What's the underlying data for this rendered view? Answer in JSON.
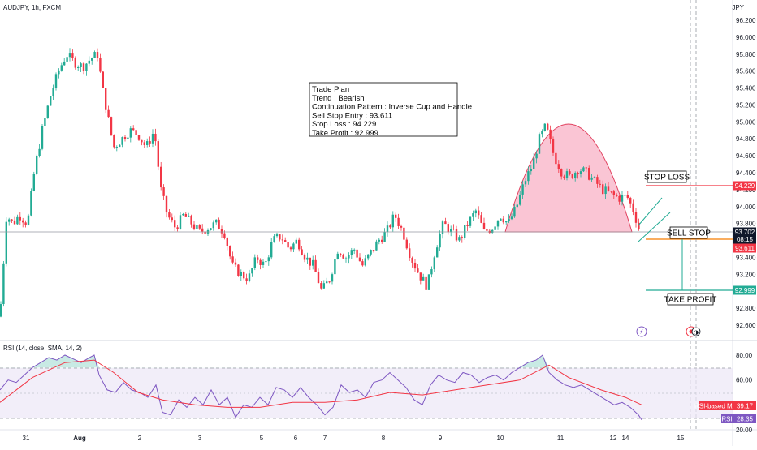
{
  "header": {
    "symbol": "AUDJPY, 1h, FXCM"
  },
  "currency": "JPY",
  "colors": {
    "up": "#22ab94",
    "down": "#f23645",
    "cup_fill": "#f7a6bd",
    "cup_line": "#e1415f",
    "rsi_line": "#7e57c2",
    "rsi_ma": "#f23645",
    "rsi_band": "#ede7f6"
  },
  "price_axis": {
    "ticks": [
      "96.200",
      "96.000",
      "95.800",
      "95.600",
      "95.400",
      "95.200",
      "95.000",
      "94.800",
      "94.600",
      "94.400",
      "94.200",
      "94.000",
      "93.800",
      "93.600",
      "93.400",
      "93.200",
      "93.000",
      "92.800",
      "92.600"
    ]
  },
  "price_tags": [
    {
      "name": "stop-loss",
      "value": "94.229",
      "color": "#f23645"
    },
    {
      "name": "last-price",
      "value": "93.702",
      "color": "#0f172a"
    },
    {
      "name": "countdown",
      "value": "08:15",
      "color": "#0f172a"
    },
    {
      "name": "sell-entry",
      "value": "93.611",
      "color": "#f23645"
    },
    {
      "name": "take-profit",
      "value": "92.999",
      "color": "#22ab94"
    }
  ],
  "time_axis": {
    "labels": [
      "31",
      "Aug",
      "2",
      "3",
      "5",
      "6",
      "7",
      "8",
      "9",
      "10",
      "11",
      "12",
      "14",
      "15"
    ]
  },
  "trade_plan": {
    "lines": [
      "Trade Plan",
      "Trend : Bearish",
      "Continuation Pattern : Inverse Cup and Handle",
      "Sell Stop Entry : 93.611",
      "Stop Loss : 94.229",
      "Take Profit : 92.999"
    ]
  },
  "annotations": {
    "stop_loss": "STOP LOSS",
    "sell_stop": "SELL STOP",
    "take_profit": "TAKE PROFIT"
  },
  "rsi": {
    "title": "RSI (14, close, SMA, 14, 2)",
    "axis_ticks": [
      "80.00",
      "60.00",
      "20.00"
    ],
    "ma_tag": "RSI-based MA",
    "ma_value": "39.17",
    "rsi_tag": "RSI",
    "rsi_value": "28.35"
  },
  "chart_data": {
    "type": "candlestick",
    "title": "AUDJPY, 1h, FXCM",
    "ylim": [
      92.5,
      96.3
    ],
    "levels": {
      "stop_loss": 94.229,
      "sell_stop_entry": 93.611,
      "take_profit": 92.999,
      "last": 93.702
    },
    "close_path": [
      [
        0,
        92.7
      ],
      [
        8,
        93.9
      ],
      [
        16,
        93.8
      ],
      [
        24,
        93.9
      ],
      [
        34,
        93.8
      ],
      [
        42,
        94.4
      ],
      [
        52,
        94.9
      ],
      [
        62,
        95.3
      ],
      [
        72,
        95.6
      ],
      [
        82,
        95.8
      ],
      [
        92,
        95.7
      ],
      [
        102,
        95.65
      ],
      [
        112,
        95.75
      ],
      [
        120,
        95.8
      ],
      [
        126,
        95.4
      ],
      [
        134,
        95.0
      ],
      [
        140,
        94.7
      ],
      [
        150,
        94.8
      ],
      [
        160,
        94.9
      ],
      [
        170,
        94.85
      ],
      [
        180,
        94.7
      ],
      [
        190,
        94.9
      ],
      [
        198,
        94.2
      ],
      [
        206,
        93.9
      ],
      [
        216,
        93.75
      ],
      [
        226,
        93.9
      ],
      [
        236,
        93.8
      ],
      [
        246,
        93.7
      ],
      [
        256,
        93.75
      ],
      [
        266,
        93.8
      ],
      [
        276,
        93.7
      ],
      [
        286,
        93.3
      ],
      [
        296,
        93.2
      ],
      [
        306,
        93.15
      ],
      [
        316,
        93.4
      ],
      [
        326,
        93.3
      ],
      [
        336,
        93.6
      ],
      [
        346,
        93.65
      ],
      [
        356,
        93.5
      ],
      [
        366,
        93.6
      ],
      [
        376,
        93.4
      ],
      [
        386,
        93.3
      ],
      [
        396,
        93.0
      ],
      [
        406,
        93.15
      ],
      [
        416,
        93.5
      ],
      [
        426,
        93.4
      ],
      [
        436,
        93.5
      ],
      [
        446,
        93.3
      ],
      [
        456,
        93.45
      ],
      [
        466,
        93.6
      ],
      [
        476,
        93.7
      ],
      [
        486,
        93.9
      ],
      [
        496,
        93.7
      ],
      [
        506,
        93.4
      ],
      [
        516,
        93.2
      ],
      [
        526,
        93.05
      ],
      [
        536,
        93.5
      ],
      [
        546,
        93.8
      ],
      [
        556,
        93.7
      ],
      [
        566,
        93.6
      ],
      [
        576,
        93.8
      ],
      [
        586,
        93.95
      ],
      [
        596,
        93.7
      ],
      [
        606,
        93.75
      ],
      [
        616,
        93.9
      ],
      [
        626,
        93.8
      ],
      [
        636,
        94.0
      ],
      [
        646,
        94.3
      ],
      [
        656,
        94.5
      ],
      [
        664,
        94.8
      ],
      [
        672,
        94.95
      ],
      [
        682,
        94.6
      ],
      [
        692,
        94.4
      ],
      [
        702,
        94.35
      ],
      [
        712,
        94.45
      ],
      [
        722,
        94.4
      ],
      [
        732,
        94.3
      ],
      [
        742,
        94.2
      ],
      [
        752,
        94.15
      ],
      [
        762,
        94.1
      ],
      [
        772,
        94.12
      ],
      [
        780,
        93.95
      ],
      [
        788,
        93.7
      ]
    ],
    "rsi_series": [
      [
        0,
        52
      ],
      [
        10,
        60
      ],
      [
        20,
        58
      ],
      [
        30,
        64
      ],
      [
        40,
        70
      ],
      [
        50,
        74
      ],
      [
        60,
        78
      ],
      [
        70,
        76
      ],
      [
        80,
        80
      ],
      [
        90,
        77
      ],
      [
        100,
        74
      ],
      [
        110,
        78
      ],
      [
        116,
        80
      ],
      [
        122,
        64
      ],
      [
        132,
        52
      ],
      [
        142,
        50
      ],
      [
        152,
        58
      ],
      [
        162,
        52
      ],
      [
        172,
        50
      ],
      [
        182,
        46
      ],
      [
        192,
        56
      ],
      [
        200,
        34
      ],
      [
        210,
        32
      ],
      [
        220,
        44
      ],
      [
        230,
        38
      ],
      [
        240,
        46
      ],
      [
        250,
        40
      ],
      [
        260,
        52
      ],
      [
        270,
        40
      ],
      [
        280,
        46
      ],
      [
        290,
        30
      ],
      [
        300,
        40
      ],
      [
        310,
        38
      ],
      [
        320,
        46
      ],
      [
        330,
        40
      ],
      [
        340,
        54
      ],
      [
        350,
        52
      ],
      [
        360,
        46
      ],
      [
        370,
        54
      ],
      [
        380,
        46
      ],
      [
        390,
        40
      ],
      [
        400,
        32
      ],
      [
        410,
        38
      ],
      [
        420,
        56
      ],
      [
        430,
        50
      ],
      [
        440,
        52
      ],
      [
        450,
        46
      ],
      [
        460,
        58
      ],
      [
        470,
        60
      ],
      [
        480,
        66
      ],
      [
        490,
        60
      ],
      [
        500,
        54
      ],
      [
        510,
        44
      ],
      [
        520,
        40
      ],
      [
        530,
        56
      ],
      [
        540,
        64
      ],
      [
        550,
        60
      ],
      [
        560,
        58
      ],
      [
        570,
        66
      ],
      [
        580,
        64
      ],
      [
        590,
        58
      ],
      [
        600,
        62
      ],
      [
        610,
        64
      ],
      [
        620,
        60
      ],
      [
        630,
        66
      ],
      [
        640,
        70
      ],
      [
        650,
        74
      ],
      [
        660,
        76
      ],
      [
        668,
        80
      ],
      [
        676,
        66
      ],
      [
        686,
        60
      ],
      [
        696,
        56
      ],
      [
        706,
        54
      ],
      [
        716,
        56
      ],
      [
        726,
        52
      ],
      [
        736,
        48
      ],
      [
        746,
        44
      ],
      [
        756,
        40
      ],
      [
        766,
        42
      ],
      [
        776,
        38
      ],
      [
        786,
        32
      ],
      [
        790,
        28
      ]
    ],
    "rsi_ma_series": [
      [
        0,
        42
      ],
      [
        40,
        62
      ],
      [
        80,
        74
      ],
      [
        116,
        76
      ],
      [
        140,
        66
      ],
      [
        170,
        50
      ],
      [
        200,
        44
      ],
      [
        240,
        40
      ],
      [
        280,
        38
      ],
      [
        320,
        38
      ],
      [
        360,
        42
      ],
      [
        400,
        42
      ],
      [
        440,
        44
      ],
      [
        480,
        50
      ],
      [
        520,
        48
      ],
      [
        560,
        52
      ],
      [
        600,
        56
      ],
      [
        640,
        60
      ],
      [
        676,
        72
      ],
      [
        700,
        62
      ],
      [
        740,
        52
      ],
      [
        770,
        46
      ],
      [
        790,
        40
      ]
    ]
  }
}
